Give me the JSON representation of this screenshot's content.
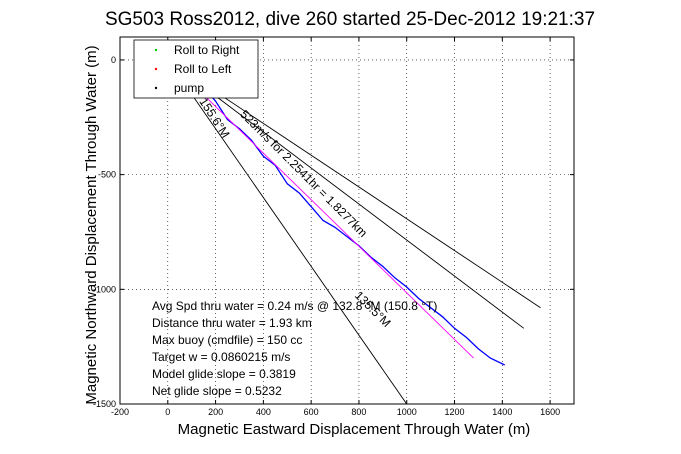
{
  "chart_data": {
    "type": "line",
    "title": "SG503 Ross2012, dive 260 started 25-Dec-2012 19:21:37",
    "xlabel": "Magnetic Eastward Displacement Through Water (m)",
    "ylabel": "Magnetic Northward Displacement Through Water (m)",
    "xlim": [
      -200,
      1700
    ],
    "ylim": [
      -1500,
      100
    ],
    "xticks": [
      "-200",
      "0",
      "200",
      "400",
      "600",
      "800",
      "1000",
      "1200",
      "1400",
      "1600"
    ],
    "yticks": [
      "-1500",
      "-1000",
      "-500",
      "0"
    ],
    "grid": true,
    "legend_position": "top-left",
    "legend": [
      {
        "label": "Roll to Right",
        "color": "#00cc00"
      },
      {
        "label": "Roll to Left",
        "color": "#ff0000"
      },
      {
        "label": "pump",
        "color": "#000000"
      }
    ],
    "series": [
      {
        "color": "#0000ff",
        "x": [
          0,
          20,
          40,
          60,
          80,
          100,
          150,
          200,
          250,
          300,
          350,
          400,
          450,
          500,
          550,
          600,
          650,
          700,
          750,
          800,
          850,
          900,
          950,
          1000,
          1050,
          1100,
          1150,
          1200,
          1250,
          1300,
          1350,
          1410
        ],
        "y": [
          -20,
          50,
          50,
          -20,
          -10,
          -60,
          -120,
          -180,
          -260,
          -300,
          -350,
          -420,
          -460,
          -540,
          -580,
          -640,
          -700,
          -730,
          -770,
          -810,
          -860,
          -900,
          -950,
          -990,
          -1040,
          -1080,
          -1120,
          -1170,
          -1210,
          -1260,
          -1300,
          -1330
        ]
      },
      {
        "color": "#ff00ff",
        "x": [
          0,
          1280
        ],
        "y": [
          0,
          -1300
        ]
      },
      {
        "color": "#000000",
        "x": [
          0,
          1000
        ],
        "y": [
          0,
          -1500
        ]
      },
      {
        "color": "#000000",
        "x": [
          0,
          1560
        ],
        "y": [
          0,
          -1080
        ]
      },
      {
        "color": "#000000",
        "x": [
          0,
          1490
        ],
        "y": [
          0,
          -1170
        ]
      }
    ],
    "annotations": [
      {
        "text": "523m/s for 2.2541hr = 1.8277km",
        "x": 300,
        "y": -240,
        "rotation": 45
      },
      {
        "text": "135.5°M",
        "x": 780,
        "y": -1030,
        "rotation": 45
      },
      {
        "text": "155.6°M",
        "x": 130,
        "y": -180,
        "rotation": 57
      }
    ],
    "stats": [
      "Avg Spd thru water =  0.24 m/s @ 132.8 °M (150.8 °T)",
      "Distance thru water =  1.93 km",
      "Max buoy (cmdfile) = 150 cc",
      "Target w = 0.0860215 m/s",
      "Model glide slope = 0.3819",
      "Net glide slope = 0.5232"
    ]
  }
}
